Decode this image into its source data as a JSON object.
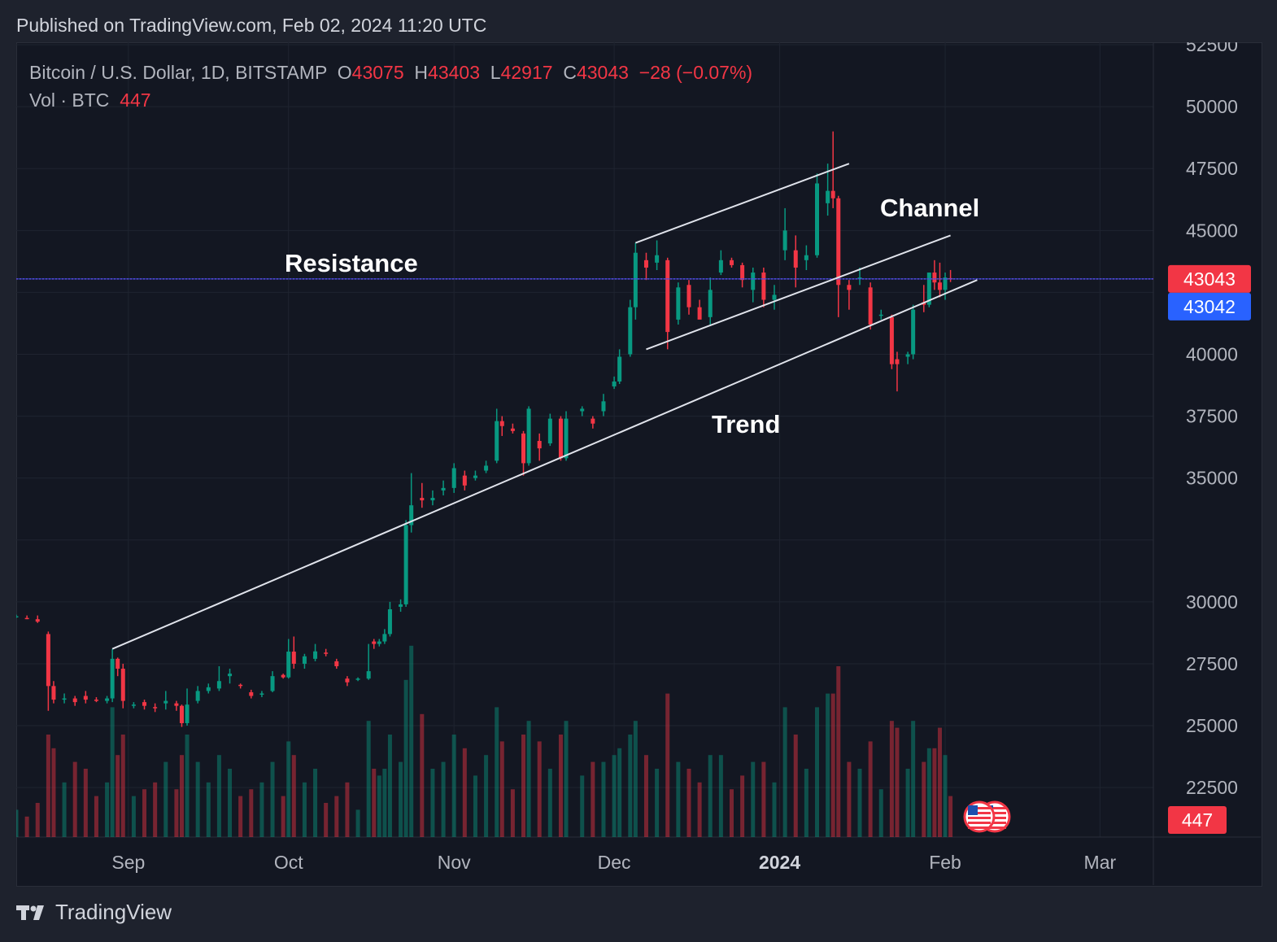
{
  "header": {
    "published": "Published on TradingView.com, Feb 02, 2024 11:20 UTC"
  },
  "legend": {
    "symbol": "Bitcoin / U.S. Dollar, 1D, BITSTAMP",
    "open_label": "O",
    "open": "43075",
    "high_label": "H",
    "high": "43403",
    "low_label": "L",
    "low": "42917",
    "close_label": "C",
    "close": "43043",
    "change": "−28 (−0.07%)",
    "vol_label": "Vol · BTC",
    "vol": "447"
  },
  "footer": {
    "brand": "TradingView",
    "logo_icon": "tradingview-logo-icon"
  },
  "colors": {
    "up": "#089981",
    "down": "#f23645",
    "price_label": "#f23645",
    "crosshair_label": "#2962ff",
    "text": "#b2b5be",
    "background": "#131722",
    "grid": "#1f2430"
  },
  "chart_data": {
    "type": "candlestick",
    "symbol": "BTCUSD",
    "interval": "1D",
    "exchange": "BITSTAMP",
    "y_axis": {
      "ticks": [
        22500,
        25000,
        27500,
        30000,
        32500,
        35000,
        37500,
        40000,
        42500,
        45000,
        47500,
        50000,
        52500
      ],
      "tick_labels": [
        "22500",
        "25000",
        "27500",
        "30000",
        "",
        "35000",
        "37500",
        "40000",
        "",
        "45000",
        "47500",
        "50000",
        "52500"
      ],
      "range": [
        20500,
        52600
      ]
    },
    "x_axis": {
      "ticks": [
        {
          "label": "Sep",
          "date": "2023-09-01",
          "bold": false
        },
        {
          "label": "Oct",
          "date": "2023-10-01",
          "bold": false
        },
        {
          "label": "Nov",
          "date": "2023-11-01",
          "bold": false
        },
        {
          "label": "Dec",
          "date": "2023-12-01",
          "bold": false
        },
        {
          "label": "2024",
          "date": "2024-01-01",
          "bold": true
        },
        {
          "label": "Feb",
          "date": "2024-02-01",
          "bold": false
        },
        {
          "label": "Mar",
          "date": "2024-03-01",
          "bold": false
        }
      ],
      "range": [
        "2023-08-11",
        "2024-03-11"
      ]
    },
    "price_labels": [
      {
        "value": "43043",
        "kind": "last-price"
      },
      {
        "value": "43042",
        "kind": "crosshair"
      }
    ],
    "volume_label": "447",
    "annotations": [
      {
        "text": "Resistance",
        "type": "horizontal-line",
        "price": 43043
      },
      {
        "text": "Trend",
        "type": "trendline",
        "from": {
          "date": "2023-08-29",
          "price": 28100
        },
        "to": {
          "date": "2024-02-07",
          "price": 43000
        }
      },
      {
        "text": "Channel",
        "type": "parallel-channel",
        "upper": {
          "from": {
            "date": "2023-12-05",
            "price": 44500
          },
          "to": {
            "date": "2024-01-14",
            "price": 47700
          }
        },
        "lower": {
          "from": {
            "date": "2023-12-07",
            "price": 40200
          },
          "to": {
            "date": "2024-02-02",
            "price": 44800
          }
        }
      }
    ],
    "candles": [
      [
        "2023-08-11",
        29420,
        29480,
        29350,
        29400,
        8,
        "up"
      ],
      [
        "2023-08-13",
        29350,
        29450,
        29300,
        29340,
        6,
        "down"
      ],
      [
        "2023-08-15",
        29300,
        29450,
        29150,
        29200,
        10,
        "down"
      ],
      [
        "2023-08-17",
        28700,
        28800,
        25600,
        26600,
        30,
        "down"
      ],
      [
        "2023-08-18",
        26600,
        26800,
        25900,
        26050,
        26,
        "down"
      ],
      [
        "2023-08-20",
        26050,
        26300,
        25900,
        26100,
        16,
        "up"
      ],
      [
        "2023-08-22",
        26100,
        26200,
        25800,
        25950,
        22,
        "down"
      ],
      [
        "2023-08-24",
        26200,
        26400,
        25900,
        26050,
        20,
        "down"
      ],
      [
        "2023-08-26",
        26050,
        26150,
        25950,
        26000,
        12,
        "down"
      ],
      [
        "2023-08-28",
        26000,
        26200,
        25900,
        26100,
        16,
        "up"
      ],
      [
        "2023-08-29",
        26100,
        28100,
        25950,
        27700,
        38,
        "up"
      ],
      [
        "2023-08-30",
        27700,
        27750,
        27000,
        27300,
        24,
        "down"
      ],
      [
        "2023-08-31",
        27300,
        27500,
        25700,
        26000,
        30,
        "down"
      ],
      [
        "2023-09-02",
        25800,
        25950,
        25700,
        25850,
        12,
        "up"
      ],
      [
        "2023-09-04",
        25950,
        26050,
        25650,
        25800,
        14,
        "down"
      ],
      [
        "2023-09-06",
        25750,
        25900,
        25550,
        25700,
        16,
        "down"
      ],
      [
        "2023-09-08",
        25900,
        26400,
        25650,
        26000,
        22,
        "up"
      ],
      [
        "2023-09-10",
        25900,
        26000,
        25600,
        25800,
        14,
        "down"
      ],
      [
        "2023-09-11",
        25800,
        25850,
        24950,
        25100,
        24,
        "down"
      ],
      [
        "2023-09-12",
        25100,
        26500,
        25000,
        25850,
        30,
        "up"
      ],
      [
        "2023-09-14",
        26000,
        26600,
        25900,
        26400,
        22,
        "up"
      ],
      [
        "2023-09-16",
        26400,
        26700,
        26300,
        26550,
        16,
        "up"
      ],
      [
        "2023-09-18",
        26500,
        27400,
        26400,
        26800,
        24,
        "up"
      ],
      [
        "2023-09-20",
        27000,
        27300,
        26700,
        27100,
        20,
        "up"
      ],
      [
        "2023-09-22",
        26650,
        26700,
        26500,
        26600,
        12,
        "down"
      ],
      [
        "2023-09-24",
        26350,
        26450,
        26100,
        26200,
        14,
        "down"
      ],
      [
        "2023-09-26",
        26250,
        26400,
        26150,
        26300,
        16,
        "up"
      ],
      [
        "2023-09-28",
        26400,
        27200,
        26350,
        27000,
        22,
        "up"
      ],
      [
        "2023-09-30",
        27050,
        27100,
        26900,
        26950,
        12,
        "down"
      ],
      [
        "2023-10-01",
        26950,
        28500,
        26900,
        27990,
        28,
        "up"
      ],
      [
        "2023-10-02",
        27990,
        28600,
        27300,
        27500,
        24,
        "down"
      ],
      [
        "2023-10-04",
        27500,
        27900,
        27300,
        27800,
        16,
        "up"
      ],
      [
        "2023-10-06",
        27700,
        28300,
        27600,
        28000,
        20,
        "up"
      ],
      [
        "2023-10-08",
        27950,
        28100,
        27800,
        27900,
        10,
        "down"
      ],
      [
        "2023-10-10",
        27600,
        27700,
        27300,
        27400,
        12,
        "down"
      ],
      [
        "2023-10-12",
        26900,
        27000,
        26600,
        26750,
        16,
        "down"
      ],
      [
        "2023-10-14",
        26850,
        26950,
        26800,
        26900,
        8,
        "up"
      ],
      [
        "2023-10-16",
        26900,
        28300,
        26850,
        27200,
        34,
        "up"
      ],
      [
        "2023-10-17",
        28400,
        28500,
        28100,
        28300,
        20,
        "down"
      ],
      [
        "2023-10-18",
        28300,
        28500,
        28200,
        28400,
        18,
        "up"
      ],
      [
        "2023-10-19",
        28400,
        28900,
        28300,
        28700,
        20,
        "up"
      ],
      [
        "2023-10-20",
        28700,
        30000,
        28600,
        29700,
        30,
        "up"
      ],
      [
        "2023-10-22",
        29800,
        30100,
        29600,
        29900,
        22,
        "up"
      ],
      [
        "2023-10-23",
        29900,
        33300,
        29800,
        33100,
        46,
        "up"
      ],
      [
        "2023-10-24",
        33100,
        35200,
        32800,
        33900,
        56,
        "up"
      ],
      [
        "2023-10-26",
        34200,
        34800,
        33800,
        34100,
        36,
        "down"
      ],
      [
        "2023-10-28",
        34100,
        34500,
        33900,
        34200,
        20,
        "up"
      ],
      [
        "2023-10-30",
        34500,
        34900,
        34300,
        34600,
        22,
        "up"
      ],
      [
        "2023-11-01",
        34600,
        35600,
        34400,
        35400,
        30,
        "up"
      ],
      [
        "2023-11-03",
        35100,
        35300,
        34500,
        34700,
        26,
        "down"
      ],
      [
        "2023-11-05",
        35000,
        35300,
        34900,
        35100,
        18,
        "up"
      ],
      [
        "2023-11-07",
        35300,
        35700,
        35200,
        35500,
        24,
        "up"
      ],
      [
        "2023-11-09",
        35700,
        37800,
        35600,
        37300,
        38,
        "up"
      ],
      [
        "2023-11-10",
        37300,
        37500,
        36700,
        37100,
        28,
        "down"
      ],
      [
        "2023-11-12",
        37000,
        37200,
        36800,
        36900,
        14,
        "down"
      ],
      [
        "2023-11-14",
        36800,
        36900,
        35100,
        35600,
        30,
        "down"
      ],
      [
        "2023-11-15",
        35600,
        37900,
        35500,
        37800,
        34,
        "up"
      ],
      [
        "2023-11-17",
        36500,
        36800,
        35700,
        36200,
        28,
        "down"
      ],
      [
        "2023-11-19",
        36400,
        37600,
        36300,
        37400,
        20,
        "up"
      ],
      [
        "2023-11-21",
        37400,
        37500,
        35700,
        35800,
        30,
        "down"
      ],
      [
        "2023-11-22",
        35800,
        37700,
        35700,
        37400,
        34,
        "up"
      ],
      [
        "2023-11-25",
        37700,
        37900,
        37500,
        37800,
        18,
        "up"
      ],
      [
        "2023-11-27",
        37400,
        37500,
        37000,
        37200,
        22,
        "down"
      ],
      [
        "2023-11-29",
        37700,
        38400,
        37500,
        38100,
        22,
        "up"
      ],
      [
        "2023-12-01",
        38700,
        39100,
        38600,
        38900,
        24,
        "up"
      ],
      [
        "2023-12-02",
        38900,
        40200,
        38800,
        39900,
        26,
        "up"
      ],
      [
        "2023-12-04",
        40000,
        42200,
        39900,
        41900,
        30,
        "up"
      ],
      [
        "2023-12-05",
        41900,
        44500,
        41400,
        44100,
        34,
        "up"
      ],
      [
        "2023-12-07",
        43800,
        44100,
        43000,
        43500,
        24,
        "down"
      ],
      [
        "2023-12-09",
        43700,
        44600,
        43400,
        44000,
        20,
        "up"
      ],
      [
        "2023-12-11",
        43800,
        43900,
        40200,
        40900,
        42,
        "down"
      ],
      [
        "2023-12-13",
        41400,
        42900,
        41200,
        42700,
        22,
        "up"
      ],
      [
        "2023-12-15",
        42800,
        43000,
        41600,
        41900,
        20,
        "down"
      ],
      [
        "2023-12-17",
        41900,
        42200,
        41700,
        41400,
        16,
        "down"
      ],
      [
        "2023-12-19",
        41500,
        43100,
        41200,
        42600,
        24,
        "up"
      ],
      [
        "2023-12-21",
        43300,
        44200,
        43200,
        43800,
        24,
        "up"
      ],
      [
        "2023-12-23",
        43800,
        43900,
        43500,
        43600,
        14,
        "down"
      ],
      [
        "2023-12-25",
        43600,
        43700,
        42700,
        43000,
        18,
        "down"
      ],
      [
        "2023-12-27",
        42600,
        43500,
        42100,
        43300,
        22,
        "up"
      ],
      [
        "2023-12-29",
        43300,
        43500,
        41900,
        42200,
        22,
        "down"
      ],
      [
        "2023-12-31",
        42200,
        42800,
        41800,
        42400,
        16,
        "up"
      ],
      [
        "2024-01-02",
        44200,
        45900,
        43800,
        45000,
        38,
        "up"
      ],
      [
        "2024-01-04",
        44200,
        44800,
        42700,
        43500,
        30,
        "down"
      ],
      [
        "2024-01-06",
        43800,
        44400,
        43400,
        44000,
        20,
        "up"
      ],
      [
        "2024-01-08",
        44000,
        47300,
        43900,
        46900,
        38,
        "up"
      ],
      [
        "2024-01-10",
        46100,
        47700,
        45600,
        46600,
        42,
        "up"
      ],
      [
        "2024-01-11",
        46600,
        49000,
        45900,
        46300,
        42,
        "down"
      ],
      [
        "2024-01-12",
        46300,
        46400,
        41500,
        42800,
        50,
        "down"
      ],
      [
        "2024-01-14",
        42800,
        43000,
        41800,
        42600,
        22,
        "down"
      ],
      [
        "2024-01-16",
        43100,
        43500,
        42800,
        43100,
        20,
        "up"
      ],
      [
        "2024-01-18",
        42700,
        42900,
        41000,
        41200,
        28,
        "down"
      ],
      [
        "2024-01-20",
        41600,
        41800,
        41400,
        41600,
        14,
        "up"
      ],
      [
        "2024-01-22",
        41500,
        41600,
        39400,
        39600,
        34,
        "down"
      ],
      [
        "2024-01-23",
        39600,
        40100,
        38500,
        39800,
        32,
        "down"
      ],
      [
        "2024-01-25",
        39900,
        40100,
        39600,
        40000,
        20,
        "up"
      ],
      [
        "2024-01-26",
        40000,
        42000,
        39800,
        41800,
        34,
        "up"
      ],
      [
        "2024-01-28",
        42100,
        42800,
        41700,
        42000,
        22,
        "down"
      ],
      [
        "2024-01-29",
        42000,
        43300,
        41900,
        43300,
        26,
        "up"
      ],
      [
        "2024-01-30",
        43300,
        43800,
        42600,
        42900,
        26,
        "down"
      ],
      [
        "2024-01-31",
        42900,
        43700,
        42300,
        42600,
        32,
        "down"
      ],
      [
        "2024-02-01",
        42600,
        43300,
        42200,
        43100,
        24,
        "up"
      ],
      [
        "2024-02-02",
        43075,
        43403,
        42917,
        43043,
        12,
        "down"
      ]
    ]
  }
}
